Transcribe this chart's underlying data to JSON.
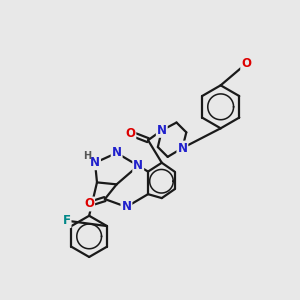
{
  "background_color": "#e8e8e8",
  "bond_color": "#1a1a1a",
  "bond_width": 1.6,
  "atom_colors": {
    "N": "#2020cc",
    "O": "#dd0000",
    "F": "#008888",
    "H": "#555555",
    "C": "#1a1a1a"
  },
  "font_size_atom": 8.5,
  "font_size_h": 7.0,
  "font_size_small": 7.0,
  "figsize": [
    3.0,
    3.0
  ],
  "dpi": 100
}
